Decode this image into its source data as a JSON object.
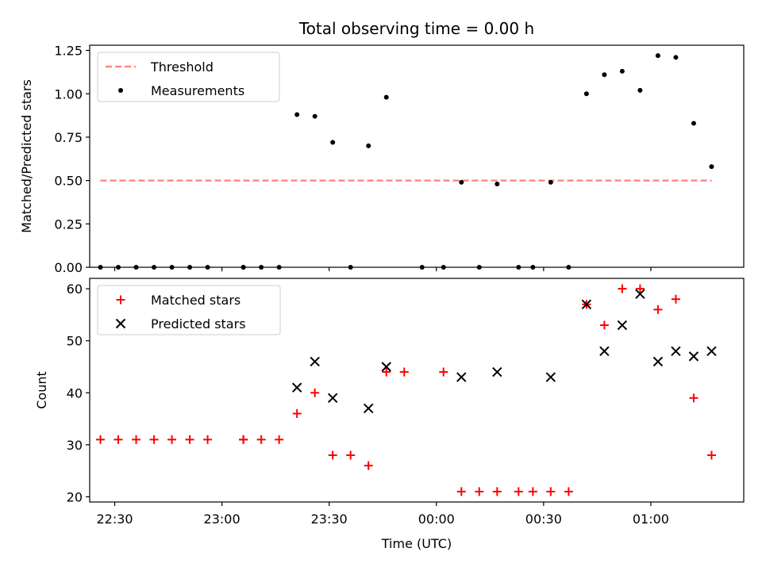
{
  "figure_title": "Total observing time = 0.00 h",
  "chart_data": [
    {
      "type": "scatter",
      "ylabel": "Matched/Predicted stars",
      "xlabel": "",
      "ylim": [
        0,
        1.28
      ],
      "yticks": [
        0.0,
        0.25,
        0.5,
        0.75,
        1.0,
        1.25
      ],
      "ytick_labels": [
        "0.00",
        "0.25",
        "0.50",
        "0.75",
        "1.00",
        "1.25"
      ],
      "xlim": [
        "22:23",
        "01:26"
      ],
      "legend_position": "top-left",
      "series": [
        {
          "name": "Threshold",
          "kind": "line",
          "color": "#ff7f7f",
          "dash": true,
          "x": [
            "22:26",
            "01:17"
          ],
          "y": [
            0.5,
            0.5
          ]
        },
        {
          "name": "Measurements",
          "kind": "dot",
          "color": "#000000",
          "x": [
            "22:26",
            "22:31",
            "22:36",
            "22:41",
            "22:46",
            "22:51",
            "22:56",
            "23:06",
            "23:06",
            "23:11",
            "23:16",
            "23:21",
            "23:26",
            "23:31",
            "23:36",
            "23:41",
            "23:46",
            "23:56",
            "24:02",
            "24:07",
            "24:12",
            "24:17",
            "24:23",
            "24:27",
            "24:32",
            "24:37",
            "24:42",
            "24:47",
            "24:52",
            "24:57",
            "25:02",
            "25:07",
            "25:12",
            "25:17"
          ],
          "y": [
            0,
            0,
            0,
            0,
            0,
            0,
            0,
            0,
            0,
            0,
            0,
            0.88,
            0.87,
            0.72,
            0,
            0.7,
            0.98,
            0,
            0,
            0.49,
            0,
            0.48,
            0,
            0,
            0.49,
            0,
            1.0,
            1.11,
            1.13,
            1.02,
            1.22,
            1.21,
            0.83,
            0.58
          ]
        }
      ]
    },
    {
      "type": "scatter",
      "ylabel": "Count",
      "xlabel": "Time (UTC)",
      "ylim": [
        19,
        62
      ],
      "yticks": [
        20,
        30,
        40,
        50,
        60
      ],
      "ytick_labels": [
        "20",
        "30",
        "40",
        "50",
        "60"
      ],
      "xlim": [
        "22:23",
        "01:26"
      ],
      "xticks": [
        "22:30",
        "23:00",
        "23:30",
        "00:00",
        "00:30",
        "01:00"
      ],
      "legend_position": "top-left",
      "series": [
        {
          "name": "Matched stars",
          "kind": "plus",
          "color": "#ff0000",
          "x": [
            "22:26",
            "22:31",
            "22:36",
            "22:41",
            "22:46",
            "22:51",
            "22:56",
            "23:06",
            "23:06",
            "23:11",
            "23:16",
            "23:21",
            "23:26",
            "23:31",
            "23:36",
            "23:41",
            "23:46",
            "23:51",
            "24:02",
            "24:07",
            "24:12",
            "24:17",
            "24:23",
            "24:27",
            "24:32",
            "24:37",
            "24:42",
            "24:47",
            "24:52",
            "24:57",
            "25:02",
            "25:07",
            "25:12",
            "25:17"
          ],
          "y": [
            31,
            31,
            31,
            31,
            31,
            31,
            31,
            31,
            31,
            31,
            31,
            36,
            40,
            28,
            28,
            26,
            44,
            44,
            44,
            21,
            21,
            21,
            21,
            21,
            21,
            21,
            57,
            53,
            60,
            60,
            56,
            58,
            39,
            28
          ]
        },
        {
          "name": "Predicted stars",
          "kind": "x",
          "color": "#000000",
          "x": [
            "23:21",
            "23:26",
            "23:31",
            "23:41",
            "23:46",
            "24:07",
            "24:17",
            "24:32",
            "24:42",
            "24:47",
            "24:52",
            "24:57",
            "25:02",
            "25:07",
            "25:12",
            "25:17"
          ],
          "y": [
            41,
            46,
            39,
            37,
            45,
            43,
            44,
            43,
            57,
            48,
            53,
            59,
            46,
            48,
            47,
            48
          ]
        }
      ]
    }
  ]
}
